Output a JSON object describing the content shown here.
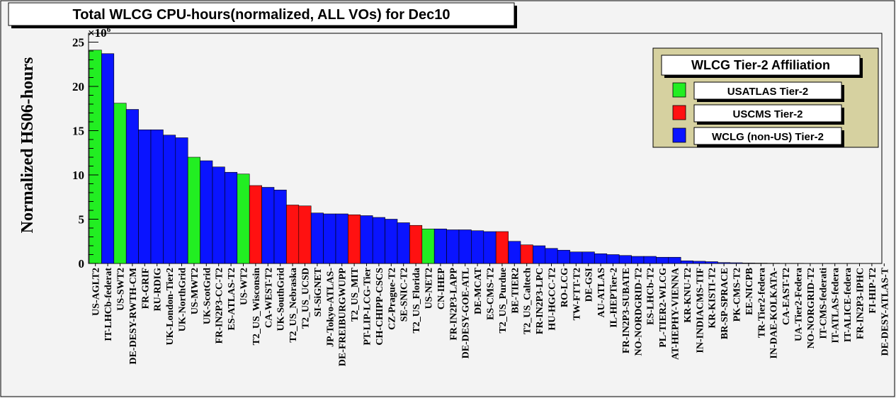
{
  "colors": {
    "usatlas": "#22ee22",
    "uscms": "#ff1111",
    "wlcg": "#0a14ff",
    "legend_bg": "#d6d1a0",
    "frame_bg": "#f3f3f3"
  },
  "chart_data": {
    "type": "bar",
    "title": "Total WLCG CPU-hours(normalized, ALL VOs) for Dec10",
    "ylabel": "Normalized HS06-hours",
    "xlabel": "",
    "y_multiplier_label": "×10",
    "y_multiplier_exponent": "6",
    "ylim": [
      0,
      26
    ],
    "yticks": [
      0,
      5,
      10,
      15,
      20,
      25
    ],
    "ytick_labels": [
      "0",
      "5",
      "10",
      "15",
      "20",
      "25"
    ],
    "legend": {
      "title": "WLCG Tier-2 Affiliation",
      "placement": "top-right",
      "entries": [
        {
          "label": "USATLAS Tier-2",
          "group": "usatlas"
        },
        {
          "label": "USCMS Tier-2",
          "group": "uscms"
        },
        {
          "label": "WCLG (non-US) Tier-2",
          "group": "wlcg"
        }
      ]
    },
    "categories": [
      "US-AGLT2",
      "IT-LHCb-federat",
      "US-SWT2",
      "DE-DESY-RWTH-CM",
      "FR-GRIF",
      "RU-RDIG",
      "UK-London-Tier2",
      "UK-NorthGrid",
      "US-MWT2",
      "UK-ScotGrid",
      "FR-IN2P3-CC-T2",
      "ES-ATLAS-T2",
      "US-WT2",
      "T2_US_Wisconsin",
      "CA-WEST-T2",
      "UK-SouthGrid",
      "T2_US_Nebraska",
      "T2_US_UCSD",
      "SI-SiGNET",
      "JP-Tokyo-ATLAS-",
      "DE-FREIBURGWUPP",
      "T2_US_MIT",
      "PT-LIP-LCG-Tier",
      "CH-CHIPP-CSCS",
      "CZ-Prague-T2",
      "SE-SNIC-T2",
      "T2_US_Florida",
      "US-NET2",
      "CN-IHEP",
      "FR-IN2P3-LAPP",
      "DE-DESY-GOE-ATL",
      "DE-MCAT",
      "ES-CMS-T2",
      "T2_US_Purdue",
      "BE-TIER2",
      "T2_US_Caltech",
      "FR-IN2P3-LPC",
      "HU-HGCC-T2",
      "RO-LCG",
      "TW-FTT-T2",
      "DE-GSI",
      "AU-ATLAS",
      "IL-HEPTier-2",
      "FR-IN2P3-SUBATE",
      "NO-NORDGRID-T2",
      "ES-LHCb-T2",
      "PL-TIER2-WLCG",
      "AT-HEPHY-VIENNA",
      "KR-KNU-T2",
      "IN-INDIACMS-TIF",
      "KR-KISTI-T2",
      "BR-SP-SPRACE",
      "PK-CMS-T2",
      "EE-NICPB",
      "TR-Tier2-federa",
      "IN-DAE-KOLKATA-",
      "CA-EAST-T2",
      "UA-Tier2-Federa",
      "NO-NORGRID-T2",
      "IT-CMS-federati",
      "IT-ATLAS-federa",
      "IT-ALICE-federa",
      "FR-IN2P3-IPHC",
      "FI-HIP-T2",
      "DE-DESY-ATLAS-T"
    ],
    "groups": [
      "usatlas",
      "wlcg",
      "usatlas",
      "wlcg",
      "wlcg",
      "wlcg",
      "wlcg",
      "wlcg",
      "usatlas",
      "wlcg",
      "wlcg",
      "wlcg",
      "usatlas",
      "uscms",
      "wlcg",
      "wlcg",
      "uscms",
      "uscms",
      "wlcg",
      "wlcg",
      "wlcg",
      "uscms",
      "wlcg",
      "wlcg",
      "wlcg",
      "wlcg",
      "uscms",
      "usatlas",
      "wlcg",
      "wlcg",
      "wlcg",
      "wlcg",
      "wlcg",
      "uscms",
      "wlcg",
      "uscms",
      "wlcg",
      "wlcg",
      "wlcg",
      "wlcg",
      "wlcg",
      "wlcg",
      "wlcg",
      "wlcg",
      "wlcg",
      "wlcg",
      "wlcg",
      "wlcg",
      "wlcg",
      "wlcg",
      "wlcg",
      "wlcg",
      "wlcg",
      "wlcg",
      "wlcg",
      "wlcg",
      "wlcg",
      "wlcg",
      "wlcg",
      "wlcg",
      "wlcg",
      "wlcg",
      "wlcg",
      "wlcg",
      "wlcg"
    ],
    "values": [
      24.1,
      23.7,
      18.1,
      17.4,
      15.1,
      15.1,
      14.5,
      14.2,
      12.0,
      11.6,
      10.9,
      10.3,
      10.1,
      8.8,
      8.6,
      8.3,
      6.6,
      6.5,
      5.7,
      5.6,
      5.6,
      5.5,
      5.4,
      5.2,
      5.0,
      4.6,
      4.3,
      3.9,
      3.9,
      3.8,
      3.8,
      3.7,
      3.6,
      3.6,
      2.5,
      2.1,
      2.0,
      1.7,
      1.5,
      1.3,
      1.3,
      1.1,
      1.0,
      0.9,
      0.8,
      0.8,
      0.7,
      0.7,
      0.3,
      0.25,
      0.2,
      0.1,
      0.08,
      0.05,
      0.04,
      0.03,
      0.02,
      0.02,
      0.01,
      0.01,
      0.01,
      0.0,
      0.0,
      0.0,
      0.0
    ]
  }
}
